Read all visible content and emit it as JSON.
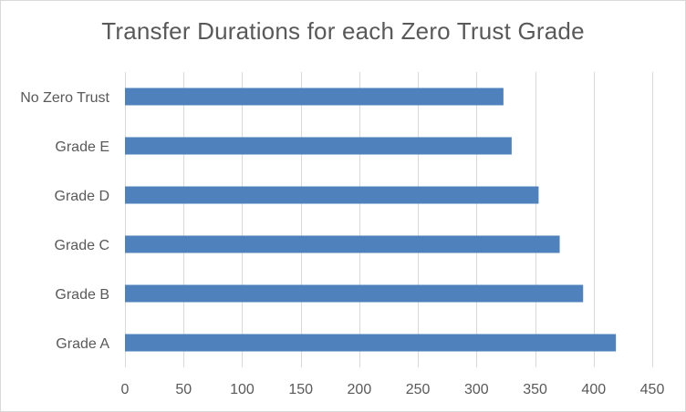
{
  "chart_data": {
    "type": "bar",
    "orientation": "horizontal",
    "title": "Transfer Durations for each Zero Trust Grade",
    "xlabel": "",
    "ylabel": "",
    "categories": [
      "No Zero Trust",
      "Grade E",
      "Grade D",
      "Grade C",
      "Grade B",
      "Grade A"
    ],
    "values": [
      323,
      330,
      353,
      371,
      391,
      419
    ],
    "xlim": [
      0,
      450
    ],
    "xticks": [
      0,
      50,
      100,
      150,
      200,
      250,
      300,
      350,
      400,
      450
    ],
    "grid": "vertical",
    "legend": "none",
    "bar_color": "#4f81bd",
    "grid_color": "#d9d9d9",
    "text_color": "#595959"
  }
}
